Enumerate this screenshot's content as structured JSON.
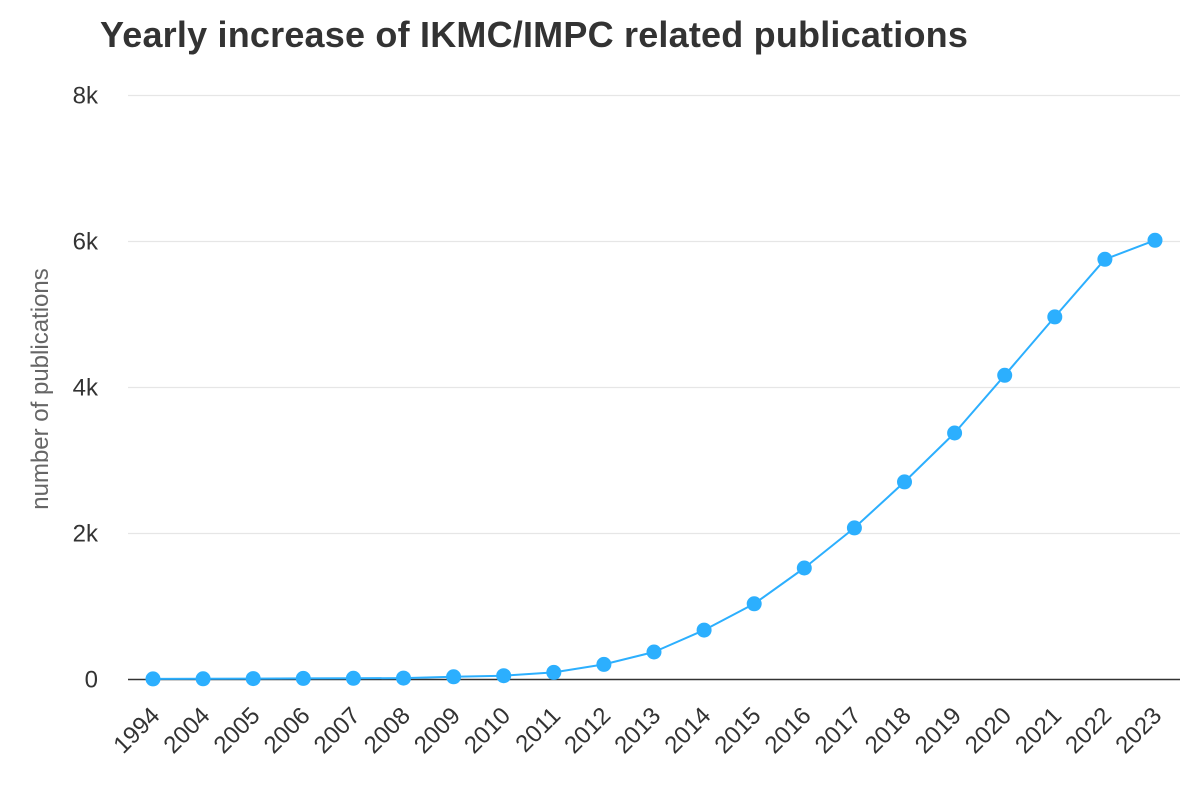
{
  "chart_data": {
    "type": "line",
    "title": "Yearly increase of IKMC/IMPC related publications",
    "xlabel": "",
    "ylabel": "number of publications",
    "categories": [
      "1994",
      "2004",
      "2005",
      "2006",
      "2007",
      "2008",
      "2009",
      "2010",
      "2011",
      "2012",
      "2013",
      "2014",
      "2015",
      "2016",
      "2017",
      "2018",
      "2019",
      "2020",
      "2021",
      "2022",
      "2023"
    ],
    "values": [
      2,
      3,
      5,
      8,
      10,
      13,
      30,
      45,
      90,
      200,
      370,
      670,
      1030,
      1520,
      2070,
      2700,
      3370,
      4160,
      4960,
      5750,
      6010
    ],
    "ylim": [
      0,
      8000
    ],
    "y_ticks": [
      {
        "value": 0,
        "label": "0"
      },
      {
        "value": 2000,
        "label": "2k"
      },
      {
        "value": 4000,
        "label": "4k"
      },
      {
        "value": 6000,
        "label": "6k"
      },
      {
        "value": 8000,
        "label": "8k"
      }
    ],
    "grid": true,
    "legend": "none",
    "colors": {
      "series": "#2caffe",
      "grid": "#e6e6e6",
      "baseline": "#333333",
      "text": "#333333",
      "axis_title": "#666666"
    }
  }
}
